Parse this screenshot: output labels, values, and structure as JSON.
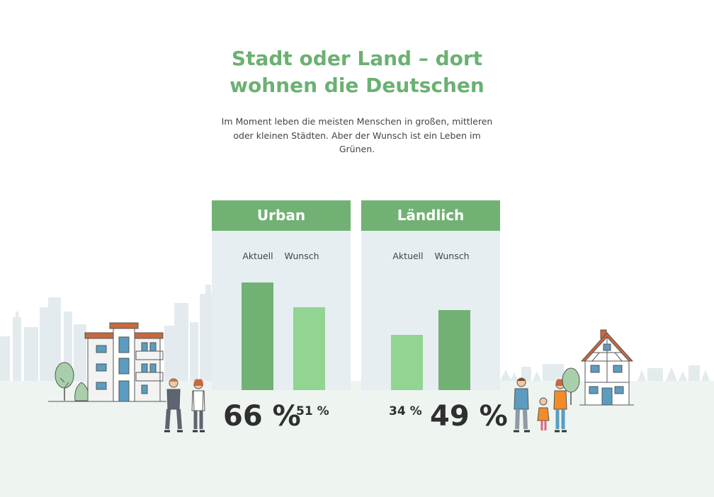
{
  "title_lines": [
    "Stadt oder Land – dort",
    "wohnen die Deutschen"
  ],
  "subtitle_lines": [
    "Im Moment leben die meisten Menschen in großen, mittleren",
    "oder kleinen Städten. Aber der Wunsch ist ein Leben im",
    "Grünen."
  ],
  "colors": {
    "title": "#6bb172",
    "header": "#72b174",
    "bar_dark": "#72b174",
    "bar_light": "#92d491",
    "panel_bg": "#e6eef2",
    "skyline": "#e3ebef",
    "ground": "#eef4f0"
  },
  "chart_data": [
    {
      "type": "bar",
      "title": "Urban",
      "categories": [
        "Aktuell",
        "Wunsch"
      ],
      "values": [
        66,
        51
      ],
      "value_labels": [
        "66 %",
        "51 %"
      ],
      "unit": "%"
    },
    {
      "type": "bar",
      "title": "Ländlich",
      "categories": [
        "Aktuell",
        "Wunsch"
      ],
      "values": [
        34,
        49
      ],
      "value_labels": [
        "34 %",
        "49 %"
      ],
      "unit": "%"
    }
  ],
  "icons": [
    "city-skyline-icon",
    "apartment-building-icon",
    "tree-icon",
    "bush-icon",
    "business-couple-icon",
    "family-icon",
    "country-house-icon"
  ]
}
